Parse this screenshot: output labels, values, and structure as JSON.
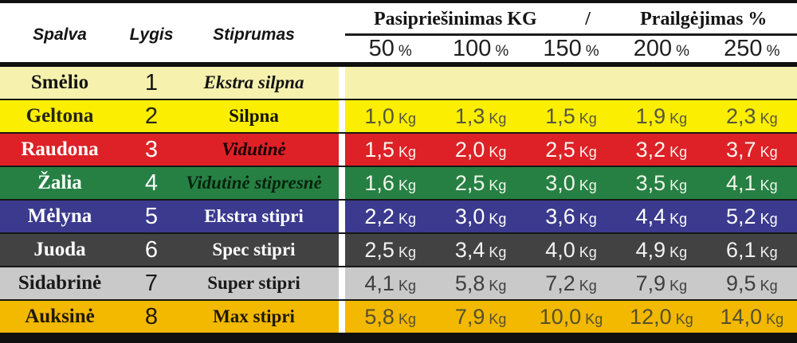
{
  "header": {
    "spalva": "Spalva",
    "lygis": "Lygis",
    "stiprumas": "Stiprumas",
    "resistance_title": "Pasipriešinimas KG",
    "divider": "/",
    "elongation_title": "Prailgėjimas %",
    "percent_levels": [
      "50",
      "100",
      "150",
      "200",
      "250"
    ],
    "percent_symbol": "%"
  },
  "unit": "Kg",
  "rows": [
    {
      "name": "Smėlio",
      "level": "1",
      "strength": "Ekstra silpna",
      "strength_style": "italic",
      "bg": "#f6f2ae",
      "fg": "#141414",
      "strength_color": "#141414",
      "value_color": "#4a4a4a",
      "values": [
        "",
        "",
        "",
        "",
        ""
      ]
    },
    {
      "name": "Geltona",
      "level": "2",
      "strength": "Silpna",
      "strength_style": "normal",
      "bg": "#fbee00",
      "fg": "#242418",
      "strength_color": "#141400",
      "value_color": "#55553d",
      "values": [
        "1,0",
        "1,3",
        "1,5",
        "1,9",
        "2,3"
      ]
    },
    {
      "name": "Raudona",
      "level": "3",
      "strength": "Vidutinė",
      "strength_style": "italic",
      "bg": "#dd2127",
      "fg": "#ffffff",
      "strength_color": "#170000",
      "value_color": "#fff4ee",
      "values": [
        "1,5",
        "2,0",
        "2,5",
        "3,2",
        "3,7"
      ]
    },
    {
      "name": "Žalia",
      "level": "4",
      "strength": "Vidutinė stipresnė",
      "strength_style": "italic",
      "bg": "#268043",
      "fg": "#ffffff",
      "strength_color": "#07230d",
      "value_color": "#eef7ea",
      "values": [
        "1,6",
        "2,5",
        "3,0",
        "3,5",
        "4,1"
      ]
    },
    {
      "name": "Mėlyna",
      "level": "5",
      "strength": "Ekstra stipri",
      "strength_style": "normal",
      "bg": "#3b3a8e",
      "fg": "#ffffff",
      "strength_color": "#ffffff",
      "value_color": "#ffffff",
      "values": [
        "2,2",
        "3,0",
        "3,6",
        "4,4",
        "5,2"
      ]
    },
    {
      "name": "Juoda",
      "level": "6",
      "strength": "Spec stipri",
      "strength_style": "normal",
      "bg": "#424242",
      "fg": "#ffffff",
      "strength_color": "#ffffff",
      "value_color": "#f2f2f2",
      "values": [
        "2,5",
        "3,4",
        "4,0",
        "4,9",
        "6,1"
      ]
    },
    {
      "name": "Sidabrinė",
      "level": "7",
      "strength": "Super stipri",
      "strength_style": "normal",
      "bg": "#c9c9c9",
      "fg": "#1a1a1a",
      "strength_color": "#1a1a1a",
      "value_color": "#3f3f3f",
      "values": [
        "4,1",
        "5,8",
        "7,2",
        "7,9",
        "9,5"
      ]
    },
    {
      "name": "Auksinė",
      "level": "8",
      "strength": "Max stipri",
      "strength_style": "normal",
      "bg": "#f3b800",
      "fg": "#1f1a00",
      "strength_color": "#1f1a00",
      "value_color": "#55502e",
      "values": [
        "5,8",
        "7,9",
        "10,0",
        "12,0",
        "14,0"
      ]
    }
  ],
  "chart_data": {
    "type": "table",
    "title": "Pasipriešinimas KG / Prailgėjimas %",
    "columns": [
      "Spalva",
      "Lygis",
      "Stiprumas",
      "50 %",
      "100 %",
      "150 %",
      "200 %",
      "250 %"
    ],
    "rows": [
      [
        "Smėlio",
        "1",
        "Ekstra silpna",
        "",
        "",
        "",
        "",
        ""
      ],
      [
        "Geltona",
        "2",
        "Silpna",
        "1,0 Kg",
        "1,3 Kg",
        "1,5 Kg",
        "1,9 Kg",
        "2,3 Kg"
      ],
      [
        "Raudona",
        "3",
        "Vidutinė",
        "1,5 Kg",
        "2,0 Kg",
        "2,5 Kg",
        "3,2 Kg",
        "3,7 Kg"
      ],
      [
        "Žalia",
        "4",
        "Vidutinė stipresnė",
        "1,6 Kg",
        "2,5 Kg",
        "3,0 Kg",
        "3,5 Kg",
        "4,1 Kg"
      ],
      [
        "Mėlyna",
        "5",
        "Ekstra stipri",
        "2,2 Kg",
        "3,0 Kg",
        "3,6 Kg",
        "4,4 Kg",
        "5,2 Kg"
      ],
      [
        "Juoda",
        "6",
        "Spec stipri",
        "2,5 Kg",
        "3,4 Kg",
        "4,0 Kg",
        "4,9 Kg",
        "6,1 Kg"
      ],
      [
        "Sidabrinė",
        "7",
        "Super stipri",
        "4,1 Kg",
        "5,8 Kg",
        "7,2 Kg",
        "7,9 Kg",
        "9,5 Kg"
      ],
      [
        "Auksinė",
        "8",
        "Max stipri",
        "5,8 Kg",
        "7,9 Kg",
        "10,0 Kg",
        "12,0 Kg",
        "14,0 Kg"
      ]
    ]
  }
}
